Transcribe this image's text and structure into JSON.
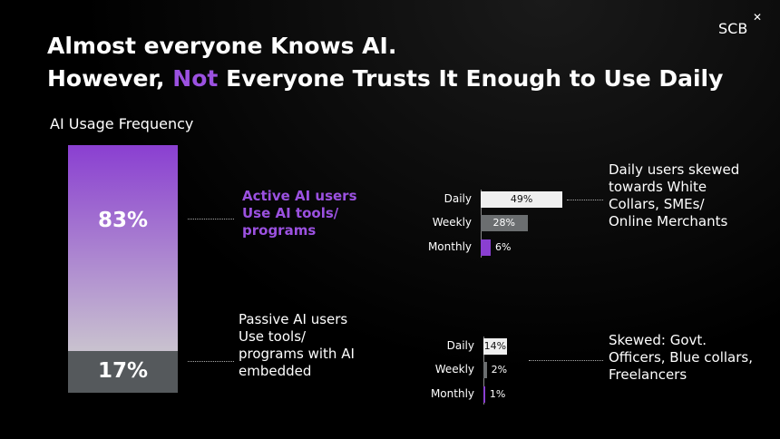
{
  "logo": "SCB",
  "title": {
    "line1": "Almost everyone Knows AI.",
    "line2_start": "However,",
    "line2_highlight": "Not",
    "line2_end": "Everyone Trusts It Enough to Use Daily"
  },
  "chart_data": [
    {
      "type": "stacked-bar",
      "title": "AI Usage Frequency",
      "series": [
        {
          "name": "Active AI users Use AI tools/ programs",
          "color": "#8a3fd1",
          "values": [
            83
          ],
          "value_labels": [
            "83%"
          ]
        },
        {
          "name": "Passive AI users Use tools/ programs with AI embedded",
          "color": "#55595c",
          "values": [
            17
          ],
          "value_labels": [
            "17%"
          ]
        }
      ]
    },
    {
      "type": "bar",
      "categories": [
        "Daily",
        "Weekly",
        "Monthly"
      ],
      "values": [
        49,
        28,
        6
      ],
      "value_labels": [
        "49%",
        "28%",
        "6%"
      ],
      "colors": [
        "#efefef",
        "#6b6e70",
        "#8a3fd1"
      ],
      "annotation": "Daily users skewed towards White Collars, SMEs/ Online Merchants"
    },
    {
      "type": "bar",
      "categories": [
        "Daily",
        "Weekly",
        "Monthly"
      ],
      "values": [
        14,
        2,
        1
      ],
      "value_labels": [
        "14%",
        "2%",
        "1%"
      ],
      "colors": [
        "#efefef",
        "#6b6e70",
        "#8a3fd1"
      ],
      "annotation": "Skewed: Govt. Officers, Blue collars, Freelancers"
    }
  ]
}
